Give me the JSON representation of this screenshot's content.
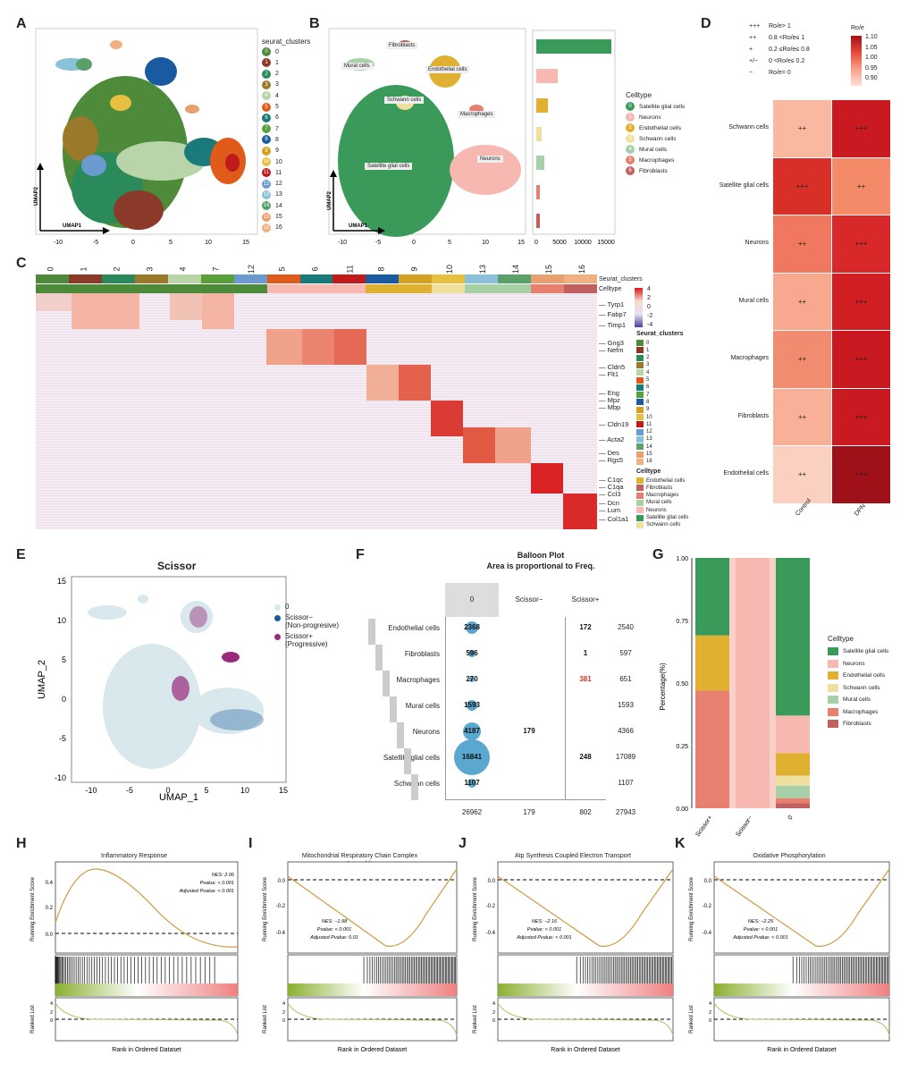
{
  "panels": {
    "A": "A",
    "B": "B",
    "C": "C",
    "D": "D",
    "E": "E",
    "F": "F",
    "G": "G",
    "H": "H",
    "I": "I",
    "J": "J",
    "K": "K"
  },
  "colors": {
    "green": "#3a9a5a",
    "salmon": "#f4a9a0",
    "red": "#c0392b",
    "teal": "#7ab8c2"
  },
  "A": {
    "legend_title": "seurat_clusters",
    "clusters": [
      {
        "id": "0",
        "color": "#4d8a3a"
      },
      {
        "id": "1",
        "color": "#8b3a2a"
      },
      {
        "id": "2",
        "color": "#2a8a5a"
      },
      {
        "id": "3",
        "color": "#9a7a2a"
      },
      {
        "id": "4",
        "color": "#b8d4a8"
      },
      {
        "id": "5",
        "color": "#e05a1a"
      },
      {
        "id": "6",
        "color": "#1a7a7a"
      },
      {
        "id": "7",
        "color": "#5aa03a"
      },
      {
        "id": "8",
        "color": "#1a5aa0"
      },
      {
        "id": "9",
        "color": "#d4a020"
      },
      {
        "id": "10",
        "color": "#e8c040"
      },
      {
        "id": "11",
        "color": "#c01a1a"
      },
      {
        "id": "12",
        "color": "#6a9ad0"
      },
      {
        "id": "13",
        "color": "#8ac0d8"
      },
      {
        "id": "14",
        "color": "#5aa06a"
      },
      {
        "id": "15",
        "color": "#e8a070"
      },
      {
        "id": "16",
        "color": "#f0b080"
      }
    ],
    "xlab": "UMAP1",
    "ylab": "UMAP2",
    "xticks": [
      "-10",
      "-5",
      "0",
      "5",
      "10",
      "15"
    ]
  },
  "B": {
    "labels": {
      "fib": "Fibroblasts",
      "mural": "Mural cells",
      "endo": "Endothelial cells",
      "schwann": "Schwann cells",
      "macro": "Macrophages",
      "sat": "Satellite glial cells",
      "neur": "Neurons"
    },
    "legend_title": "Celltype",
    "celltypes": [
      {
        "id": "0",
        "name": "Satellite glial cells",
        "color": "#3a9a5a"
      },
      {
        "id": "1",
        "name": "Neurons",
        "color": "#f6b8b0"
      },
      {
        "id": "2",
        "name": "Endothelial cells",
        "color": "#e0b030"
      },
      {
        "id": "3",
        "name": "Schwann cells",
        "color": "#f0e0a0"
      },
      {
        "id": "4",
        "name": "Mural cells",
        "color": "#a8d0a8"
      },
      {
        "id": "5",
        "name": "Macrophages",
        "color": "#e88070"
      },
      {
        "id": "6",
        "name": "Fibroblasts",
        "color": "#c06060"
      }
    ],
    "xlab": "UMAP1",
    "ylab": "UMAP2",
    "xticks": [
      "-10",
      "-5",
      "0",
      "5",
      "10",
      "15"
    ],
    "bar_xticks": [
      "0",
      "5000",
      "10000",
      "15000"
    ]
  },
  "C": {
    "clusters": [
      "0",
      "1",
      "2",
      "3",
      "4",
      "7",
      "12",
      "5",
      "6",
      "11",
      "8",
      "9",
      "10",
      "13",
      "14",
      "15",
      "16"
    ],
    "row_labels": [
      "Seurat_clusters",
      "Celltype"
    ],
    "genes": [
      "Tyrp1",
      "Fabp7",
      "Timp1",
      "Gng3",
      "Nefm",
      "Cldn5",
      "Flt1",
      "Eng",
      "Mpz",
      "Mbp",
      "Cldn19",
      "Acta2",
      "Des",
      "Rgs5",
      "C1qc",
      "C1qa",
      "Ccl3",
      "Dcn",
      "Lum",
      "Col1a1"
    ],
    "scale": [
      "4",
      "2",
      "0",
      "-2",
      "-4"
    ],
    "seurat_title": "Seurat_clusters",
    "celltype_title": "Celltype",
    "celltype_legend": [
      "Endothelial cells",
      "Fibroblasts",
      "Macrophages",
      "Mural cells",
      "Neurons",
      "Satellite glial cells",
      "Schwann cells"
    ]
  },
  "D": {
    "legend_lines": [
      {
        "sym": "+++",
        "txt": "Ro/e> 1"
      },
      {
        "sym": "++",
        "txt": "0.8 <Ro/e≤ 1"
      },
      {
        "sym": "+",
        "txt": "0.2 ≤Ro/e≤ 0.8"
      },
      {
        "sym": "+/−",
        "txt": "0 <Ro/e≤ 0.2"
      },
      {
        "sym": "−",
        "txt": "Ro/e= 0"
      }
    ],
    "scale_title": "Ro/e",
    "scale_ticks": [
      "1.10",
      "1.05",
      "1.00",
      "0.95",
      "0.90"
    ],
    "rows": [
      "Schwann cells",
      "Satellite glial cells",
      "Neurons",
      "Mural cells",
      "Macrophages",
      "Fibroblasts",
      "Endothelial cells"
    ],
    "cols": [
      "Control",
      "DPN"
    ],
    "cells": [
      [
        "++",
        "+++"
      ],
      [
        "+++",
        "++"
      ],
      [
        "++",
        "+++"
      ],
      [
        "++",
        "+++"
      ],
      [
        "++",
        "+++"
      ],
      [
        "++",
        "+++"
      ],
      [
        "++",
        "+++"
      ]
    ],
    "colors": [
      [
        "#f9b8a0",
        "#c81a20"
      ],
      [
        "#d83028",
        "#f48a68"
      ],
      [
        "#f07860",
        "#d8282a"
      ],
      [
        "#f9a890",
        "#d01e22"
      ],
      [
        "#f28c70",
        "#c81820"
      ],
      [
        "#f9b098",
        "#c81a20"
      ],
      [
        "#fbd0c0",
        "#a01018"
      ]
    ]
  },
  "E": {
    "title": "Scissor",
    "xlab": "UMAP_1",
    "ylab": "UMAP_2",
    "xticks": [
      "-10",
      "-5",
      "0",
      "5",
      "10",
      "15"
    ],
    "yticks": [
      "15",
      "10",
      "5",
      "0",
      "-5",
      "-10"
    ],
    "legend": [
      {
        "label": "0",
        "color": "#d8e8ec"
      },
      {
        "label": "Scissor−",
        "label2": "(Non-progresive)",
        "color": "#1a5a9a"
      },
      {
        "label": "Scissor+",
        "label2": "(Progressive)",
        "color": "#9a2a7a"
      }
    ]
  },
  "F": {
    "title": "Balloon Plot",
    "subtitle": "Area is proportional to Freq.",
    "cols": [
      "0",
      "Scissor−",
      "Scissor+"
    ],
    "rows": [
      {
        "name": "Endothelial cells",
        "v": [
          "2368",
          "",
          "172"
        ],
        "total": "2540"
      },
      {
        "name": "Fibroblasts",
        "v": [
          "596",
          "",
          "1"
        ],
        "total": "597"
      },
      {
        "name": "Macrophages",
        "v": [
          "270",
          "",
          "381"
        ],
        "total": "651"
      },
      {
        "name": "Mural cells",
        "v": [
          "1593",
          "",
          ""
        ],
        "total": "1593"
      },
      {
        "name": "Neurons",
        "v": [
          "4187",
          "179",
          ""
        ],
        "total": "4366"
      },
      {
        "name": "Satellite glial cells",
        "v": [
          "16841",
          "",
          "248"
        ],
        "total": "17089"
      },
      {
        "name": "Schwann cells",
        "v": [
          "1107",
          "",
          ""
        ],
        "total": "1107"
      }
    ],
    "col_totals": [
      "26962",
      "179",
      "802"
    ],
    "grand_total": "27943"
  },
  "G": {
    "ylab": "Percentage(%)",
    "yticks": [
      "1.00",
      "0.75",
      "0.50",
      "0.25",
      "0.00"
    ],
    "xticks": [
      "Scissor+",
      "Scissor−",
      "0"
    ],
    "legend_title": "Celltype",
    "legend": [
      {
        "name": "Satellite glial cells",
        "color": "#3a9a5a"
      },
      {
        "name": "Neurons",
        "color": "#f6b8b0"
      },
      {
        "name": "Endothelial cells",
        "color": "#e0b030"
      },
      {
        "name": "Schwann cells",
        "color": "#f0e0a0"
      },
      {
        "name": "Mural cells",
        "color": "#a8d0a8"
      },
      {
        "name": "Macrophages",
        "color": "#e88070"
      },
      {
        "name": "Fibroblasts",
        "color": "#c06060"
      }
    ]
  },
  "gsea": [
    {
      "title": "Inflammatory Response",
      "title2": "",
      "stats": [
        "NES: 2.06",
        "Pvalue: < 0.001",
        "Adjusted Pvalue: < 0.001"
      ],
      "ylab": "Running Enrichment Score",
      "ylab2": "Ranked List",
      "xlab": "Rank in Ordered Dataset",
      "yticks": [
        "0.4",
        "0.2",
        "0.0"
      ]
    },
    {
      "title": "Mitochondrial Respiratory Chain Complex",
      "title2": "Assembly",
      "stats": [
        "NES: −1.98",
        "Pvalue: < 0.001",
        "Adjusted Pvalue: 0.01"
      ],
      "ylab": "Running Enrichment Score",
      "ylab2": "Ranked List",
      "xlab": "Rank in Ordered Dataset",
      "yticks": [
        "0.0",
        "-0.2",
        "-0.4"
      ]
    },
    {
      "title": "Atp Synthesis Coupled Electron Transport",
      "title2": "",
      "stats": [
        "NES: −2.16",
        "Pvalue: < 0.001",
        "Adjusted Pvalue: < 0.001"
      ],
      "ylab": "Running Enrichment Score",
      "ylab2": "Ranked List",
      "xlab": "Rank in Ordered Dataset",
      "yticks": [
        "0.0",
        "-0.2",
        "-0.4"
      ]
    },
    {
      "title": "Oxidative Phosphorylation",
      "title2": "",
      "stats": [
        "NES: −2.25",
        "Pvalue: < 0.001",
        "Adjusted Pvalue: < 0.001"
      ],
      "ylab": "Running Enrichment Score",
      "ylab2": "Ranked List",
      "xlab": "Rank in Ordered Dataset",
      "yticks": [
        "0.0",
        "-0.2",
        "-0.4"
      ]
    }
  ]
}
